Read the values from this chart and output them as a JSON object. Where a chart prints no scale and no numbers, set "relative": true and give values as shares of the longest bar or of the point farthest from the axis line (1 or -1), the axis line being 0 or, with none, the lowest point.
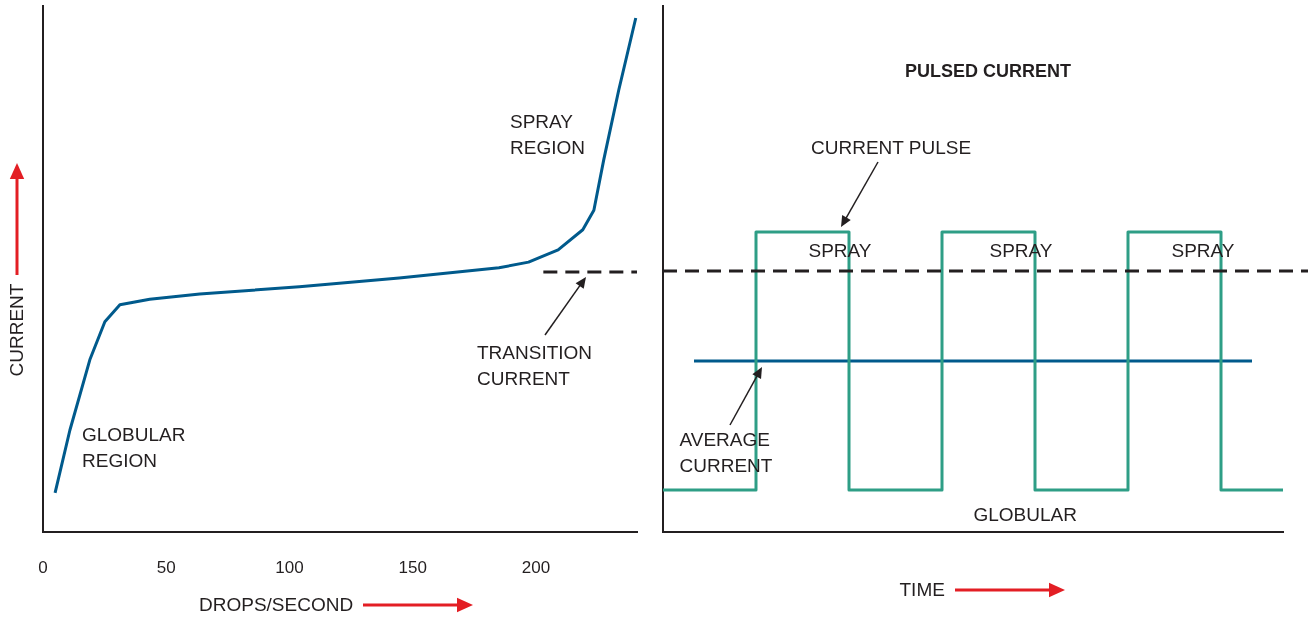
{
  "chart_data": [
    {
      "type": "line",
      "xlabel": "DROPS/SECOND",
      "ylabel": "CURRENT",
      "relative": true,
      "tick_labels": "x",
      "marker": "none",
      "xlim": [
        0,
        241
      ],
      "xticks": [
        0,
        50,
        100,
        150,
        200
      ],
      "series": [
        {
          "color": "#005a8c",
          "x": [
            4.9,
            10.9,
            19.0,
            25.1,
            31.2,
            43.3,
            63.6,
            104,
            144.5,
            185,
            197,
            209,
            219,
            223.5,
            227.5,
            233.6,
            240.5
          ],
          "values": [
            0.076,
            0.198,
            0.335,
            0.409,
            0.442,
            0.453,
            0.463,
            0.477,
            0.494,
            0.514,
            0.525,
            0.549,
            0.588,
            0.626,
            0.724,
            0.86,
            1.0
          ]
        },
        {
          "color": "#231f20",
          "line_style": "dashed",
          "x": [
            203,
            241
          ],
          "values": [
            0.506,
            0.506
          ]
        }
      ],
      "annotations": [
        "SPRAY REGION",
        "GLOBULAR REGION",
        "TRANSITION CURRENT"
      ]
    },
    {
      "type": "step",
      "title": "PULSED CURRENT",
      "xlabel": "TIME",
      "relative": true,
      "tick_labels": false,
      "marker": "none",
      "categories": [
        null,
        null,
        null,
        null,
        null,
        null,
        null,
        null,
        null,
        null,
        null,
        null,
        null,
        null,
        null,
        null,
        null,
        null,
        null,
        null,
        null
      ],
      "series": [
        {
          "color": "#2e9e86",
          "values": [
            0.14,
            0.14,
            0.14,
            0.14,
            1,
            1,
            1,
            0.14,
            0.14,
            0.14,
            1,
            1,
            1,
            0.14,
            0.14,
            0.14,
            1,
            1,
            1,
            0.14,
            0.14
          ]
        },
        {
          "type": "line",
          "color": "#005a8c",
          "values": [
            null,
            0.57,
            0.57,
            0.57,
            0.57,
            0.57,
            0.57,
            0.57,
            0.57,
            0.57,
            0.57,
            0.57,
            0.57,
            0.57,
            0.57,
            0.57,
            0.57,
            0.57,
            0.57,
            0.57,
            null
          ]
        }
      ],
      "ref_lines": [
        {
          "axis": "y",
          "value": 0.87,
          "color": "#231f20",
          "line_style": "dashed"
        }
      ],
      "annotations": [
        "CURRENT PULSE",
        "SPRAY",
        "SPRAY",
        "SPRAY",
        "AVERAGE CURRENT",
        "GLOBULAR"
      ]
    }
  ]
}
